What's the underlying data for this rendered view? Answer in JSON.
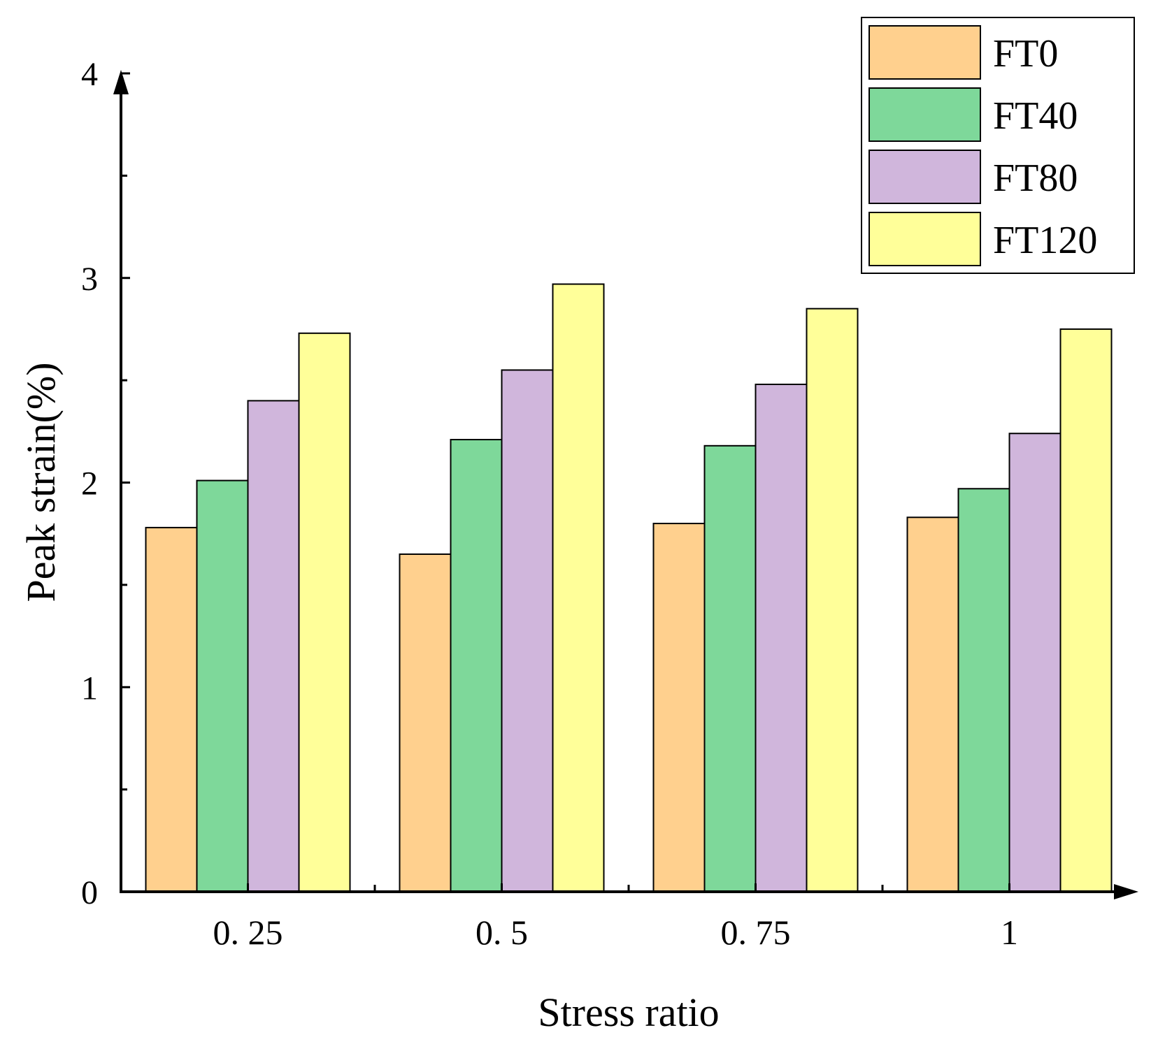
{
  "chart_data": {
    "type": "bar",
    "title": "",
    "xlabel": "Stress ratio",
    "ylabel": "Peak strain(%)",
    "ylim": [
      0,
      4
    ],
    "yticks": [
      0,
      1,
      2,
      3,
      4
    ],
    "yticks_minor": [
      0.5,
      1.5,
      2.5,
      3.5
    ],
    "categories": [
      "0. 25",
      "0. 5",
      "0. 75",
      "1"
    ],
    "series": [
      {
        "name": "FT0",
        "color": "#FFD08E",
        "values": [
          1.78,
          1.65,
          1.8,
          1.83
        ]
      },
      {
        "name": "FT40",
        "color": "#7ED89A",
        "values": [
          2.01,
          2.21,
          2.18,
          1.97
        ]
      },
      {
        "name": "FT80",
        "color": "#D0B6DC",
        "values": [
          2.4,
          2.55,
          2.48,
          2.24
        ]
      },
      {
        "name": "FT120",
        "color": "#FFFF99",
        "values": [
          2.73,
          2.97,
          2.85,
          2.75
        ]
      }
    ],
    "legend_position": "top-right",
    "grid": false
  }
}
